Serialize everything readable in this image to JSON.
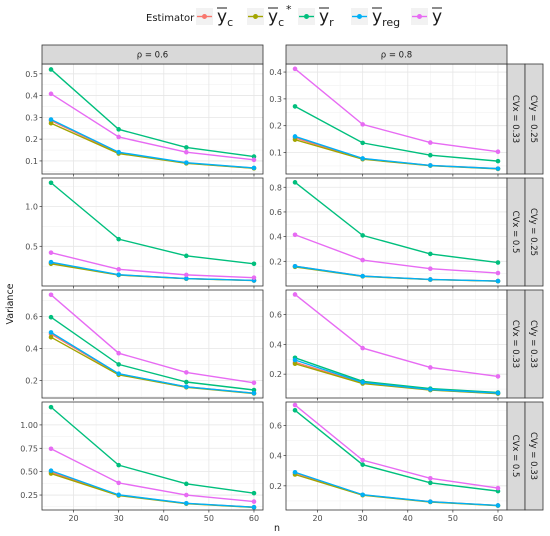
{
  "chart_data": {
    "type": "line",
    "xlabel": "n",
    "ylabel": "Variance",
    "x": [
      15,
      30,
      45,
      60
    ],
    "x_ticks": [
      20,
      30,
      40,
      50,
      60
    ],
    "xlim": [
      13,
      62
    ],
    "legend": {
      "title": "Estimator",
      "placement": "top",
      "entries": [
        {
          "key": "yc",
          "base": "y",
          "sub": "c",
          "sup": ""
        },
        {
          "key": "yc_star",
          "base": "y",
          "sub": "c",
          "sup": "*"
        },
        {
          "key": "yr",
          "base": "y",
          "sub": "r",
          "sup": ""
        },
        {
          "key": "yreg",
          "base": "y",
          "sub": "reg",
          "sup": ""
        },
        {
          "key": "ybar",
          "base": "y",
          "sub": "",
          "sup": ""
        }
      ]
    },
    "colors": {
      "yc": "#f8766d",
      "yc_star": "#a3a500",
      "yr": "#00bf7d",
      "yreg": "#00b0f6",
      "ybar": "#e76bf3"
    },
    "columns": [
      "ρ = 0.6",
      "ρ = 0.8"
    ],
    "rows": [
      {
        "cvx": "CVx = 0.33",
        "cvy": "CVy = 0.25",
        "ylim": [
          0.04,
          0.545
        ],
        "yticks": [
          0.1,
          0.2,
          0.3,
          0.4,
          0.5
        ],
        "ytick_labels": [
          "0.1",
          "0.2",
          "0.3",
          "0.4",
          "0.5"
        ]
      },
      {
        "cvx": "CVx = 0.5",
        "cvy": "CVy = 0.25",
        "ylim": [
          0.0,
          1.36
        ],
        "yticks": [
          0.5,
          1.0
        ],
        "ytick_labels": [
          "0.5",
          "1.0"
        ]
      },
      {
        "cvx": "CVx = 0.33",
        "cvy": "CVy = 0.33",
        "ylim": [
          0.09,
          0.765
        ],
        "yticks": [
          0.2,
          0.4,
          0.6
        ],
        "ytick_labels": [
          "0.2",
          "0.4",
          "0.6"
        ]
      },
      {
        "cvx": "CVx = 0.5",
        "cvy": "CVy = 0.33",
        "ylim": [
          0.09,
          1.245
        ],
        "yticks": [
          0.25,
          0.5,
          0.75,
          1.0
        ],
        "ytick_labels": [
          "0.25",
          "0.50",
          "0.75",
          "1.00"
        ]
      }
    ],
    "panels": [
      {
        "row": 0,
        "col": 0,
        "ylim": [
          0.04,
          0.545
        ],
        "yticks": [
          0.1,
          0.2,
          0.3,
          0.4,
          0.5
        ],
        "ytick_labels": [
          "0.1",
          "0.2",
          "0.3",
          "0.4",
          "0.5"
        ],
        "series": {
          "yc": [
            0.285,
            0.137,
            0.09,
            0.067
          ],
          "yc_star": [
            0.273,
            0.134,
            0.089,
            0.066
          ],
          "yr": [
            0.52,
            0.245,
            0.162,
            0.12
          ],
          "yreg": [
            0.29,
            0.14,
            0.092,
            0.068
          ],
          "ybar": [
            0.408,
            0.21,
            0.14,
            0.105
          ]
        }
      },
      {
        "row": 0,
        "col": 1,
        "ylim": [
          0.02,
          0.43
        ],
        "yticks": [
          0.1,
          0.2,
          0.3,
          0.4
        ],
        "ytick_labels": [
          "0.1",
          "0.2",
          "0.3",
          "0.4"
        ],
        "series": {
          "yc": [
            0.155,
            0.077,
            0.052,
            0.04
          ],
          "yc_star": [
            0.148,
            0.075,
            0.051,
            0.039
          ],
          "yr": [
            0.272,
            0.136,
            0.09,
            0.068
          ],
          "yreg": [
            0.16,
            0.078,
            0.052,
            0.04
          ],
          "ybar": [
            0.412,
            0.205,
            0.137,
            0.103
          ]
        }
      },
      {
        "row": 1,
        "col": 0,
        "ylim": [
          0.0,
          1.36
        ],
        "yticks": [
          0.5,
          1.0
        ],
        "ytick_labels": [
          "0.5",
          "1.0"
        ],
        "series": {
          "yc": [
            0.29,
            0.14,
            0.093,
            0.07
          ],
          "yc_star": [
            0.28,
            0.138,
            0.092,
            0.069
          ],
          "yr": [
            1.3,
            0.59,
            0.38,
            0.28
          ],
          "yreg": [
            0.3,
            0.142,
            0.094,
            0.07
          ],
          "ybar": [
            0.42,
            0.21,
            0.14,
            0.105
          ]
        }
      },
      {
        "row": 1,
        "col": 1,
        "ylim": [
          0.0,
          0.875
        ],
        "yticks": [
          0.2,
          0.4,
          0.6,
          0.8
        ],
        "ytick_labels": [
          "0.2",
          "0.4",
          "0.6",
          "0.8"
        ],
        "series": {
          "yc": [
            0.16,
            0.08,
            0.053,
            0.04
          ],
          "yc_star": [
            0.155,
            0.078,
            0.052,
            0.039
          ],
          "yr": [
            0.84,
            0.41,
            0.26,
            0.19
          ],
          "yreg": [
            0.16,
            0.08,
            0.053,
            0.04
          ],
          "ybar": [
            0.415,
            0.21,
            0.14,
            0.105
          ]
        }
      },
      {
        "row": 2,
        "col": 0,
        "ylim": [
          0.09,
          0.765
        ],
        "yticks": [
          0.2,
          0.4,
          0.6
        ],
        "ytick_labels": [
          "0.2",
          "0.4",
          "0.6"
        ],
        "series": {
          "yc": [
            0.49,
            0.24,
            0.16,
            0.12
          ],
          "yc_star": [
            0.47,
            0.235,
            0.157,
            0.118
          ],
          "yr": [
            0.595,
            0.3,
            0.19,
            0.14
          ],
          "yreg": [
            0.5,
            0.242,
            0.16,
            0.12
          ],
          "ybar": [
            0.735,
            0.37,
            0.25,
            0.185
          ]
        }
      },
      {
        "row": 2,
        "col": 1,
        "ylim": [
          0.04,
          0.765
        ],
        "yticks": [
          0.2,
          0.4,
          0.6
        ],
        "ytick_labels": [
          "0.2",
          "0.4",
          "0.6"
        ],
        "series": {
          "yc": [
            0.28,
            0.14,
            0.095,
            0.07
          ],
          "yc_star": [
            0.27,
            0.137,
            0.093,
            0.069
          ],
          "yr": [
            0.31,
            0.152,
            0.103,
            0.077
          ],
          "yreg": [
            0.295,
            0.145,
            0.097,
            0.073
          ],
          "ybar": [
            0.735,
            0.375,
            0.245,
            0.185
          ]
        }
      },
      {
        "row": 3,
        "col": 0,
        "ylim": [
          0.09,
          1.245
        ],
        "yticks": [
          0.25,
          0.5,
          0.75,
          1.0
        ],
        "ytick_labels": [
          "0.25",
          "0.50",
          "0.75",
          "1.00"
        ],
        "series": {
          "yc": [
            0.495,
            0.25,
            0.16,
            0.12
          ],
          "yc_star": [
            0.48,
            0.245,
            0.158,
            0.118
          ],
          "yr": [
            1.19,
            0.57,
            0.37,
            0.27
          ],
          "yreg": [
            0.51,
            0.252,
            0.162,
            0.12
          ],
          "ybar": [
            0.745,
            0.38,
            0.25,
            0.18
          ]
        }
      },
      {
        "row": 3,
        "col": 1,
        "ylim": [
          0.04,
          0.755
        ],
        "yticks": [
          0.2,
          0.4,
          0.6
        ],
        "ytick_labels": [
          "0.2",
          "0.4",
          "0.6"
        ],
        "series": {
          "yc": [
            0.285,
            0.14,
            0.095,
            0.07
          ],
          "yc_star": [
            0.275,
            0.138,
            0.093,
            0.069
          ],
          "yr": [
            0.7,
            0.34,
            0.22,
            0.165
          ],
          "yreg": [
            0.29,
            0.141,
            0.095,
            0.07
          ],
          "ybar": [
            0.735,
            0.37,
            0.25,
            0.185
          ]
        }
      }
    ],
    "grid": true,
    "theme": "bw"
  }
}
